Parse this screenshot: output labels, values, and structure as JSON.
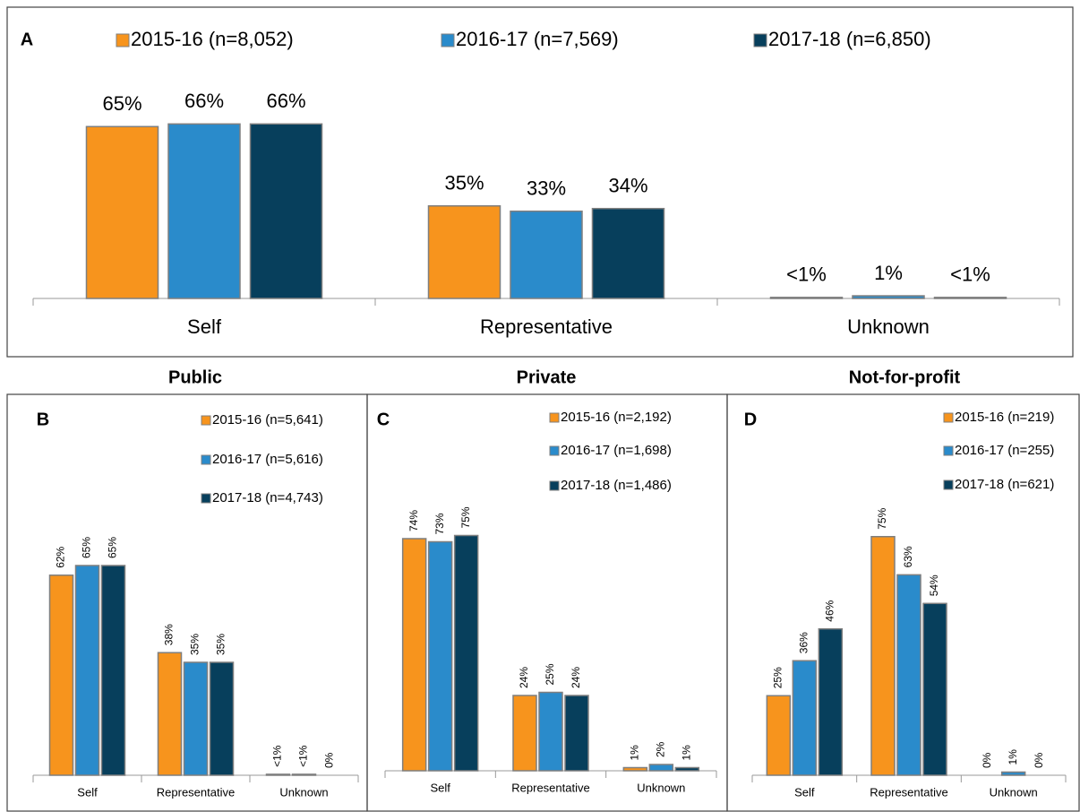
{
  "chart_data": [
    {
      "type": "bar",
      "label": "A",
      "categories": [
        "Self",
        "Representative",
        "Unknown"
      ],
      "series": [
        {
          "name": "2015-16 (n=8,052)",
          "color": "#f7941d",
          "values": [
            65,
            35,
            0.4
          ],
          "value_labels": [
            "65%",
            "35%",
            "<1%"
          ]
        },
        {
          "name": "2016-17 (n=7,569)",
          "color": "#2a8bcb",
          "values": [
            66,
            33,
            1
          ],
          "value_labels": [
            "66%",
            "33%",
            "1%"
          ]
        },
        {
          "name": "2017-18 (n=6,850)",
          "color": "#073f5c",
          "values": [
            66,
            34,
            0.4
          ],
          "value_labels": [
            "66%",
            "34%",
            "<1%"
          ]
        }
      ]
    },
    {
      "type": "bar",
      "label": "B",
      "title": "Public",
      "categories": [
        "Self",
        "Representative",
        "Unknown"
      ],
      "series": [
        {
          "name": "2015-16 (n=5,641)",
          "color": "#f7941d",
          "values": [
            62,
            38,
            0.3
          ],
          "value_labels": [
            "62%",
            "38%",
            "<1%"
          ]
        },
        {
          "name": "2016-17 (n=5,616)",
          "color": "#2a8bcb",
          "values": [
            65,
            35,
            0.3
          ],
          "value_labels": [
            "65%",
            "35%",
            "<1%"
          ]
        },
        {
          "name": "2017-18 (n=4,743)",
          "color": "#073f5c",
          "values": [
            65,
            35,
            0
          ],
          "value_labels": [
            "65%",
            "35%",
            "0%"
          ]
        }
      ]
    },
    {
      "type": "bar",
      "label": "C",
      "title": "Private",
      "categories": [
        "Self",
        "Representative",
        "Unknown"
      ],
      "series": [
        {
          "name": "2015-16 (n=2,192)",
          "color": "#f7941d",
          "values": [
            74,
            24,
            1
          ],
          "value_labels": [
            "74%",
            "24%",
            "1%"
          ]
        },
        {
          "name": "2016-17 (n=1,698)",
          "color": "#2a8bcb",
          "values": [
            73,
            25,
            2
          ],
          "value_labels": [
            "73%",
            "25%",
            "2%"
          ]
        },
        {
          "name": "2017-18 (n=1,486)",
          "color": "#073f5c",
          "values": [
            75,
            24,
            1
          ],
          "value_labels": [
            "75%",
            "24%",
            "1%"
          ]
        }
      ]
    },
    {
      "type": "bar",
      "label": "D",
      "title": "Not-for-profit",
      "categories": [
        "Self",
        "Representative",
        "Unknown"
      ],
      "series": [
        {
          "name": "2015-16 (n=219)",
          "color": "#f7941d",
          "values": [
            25,
            75,
            0
          ],
          "value_labels": [
            "25%",
            "75%",
            "0%"
          ]
        },
        {
          "name": "2016-17 (n=255)",
          "color": "#2a8bcb",
          "values": [
            36,
            63,
            1
          ],
          "value_labels": [
            "36%",
            "63%",
            "1%"
          ]
        },
        {
          "name": "2017-18 (n=621)",
          "color": "#073f5c",
          "values": [
            46,
            54,
            0
          ],
          "value_labels": [
            "46%",
            "54%",
            "0%"
          ]
        }
      ]
    }
  ]
}
